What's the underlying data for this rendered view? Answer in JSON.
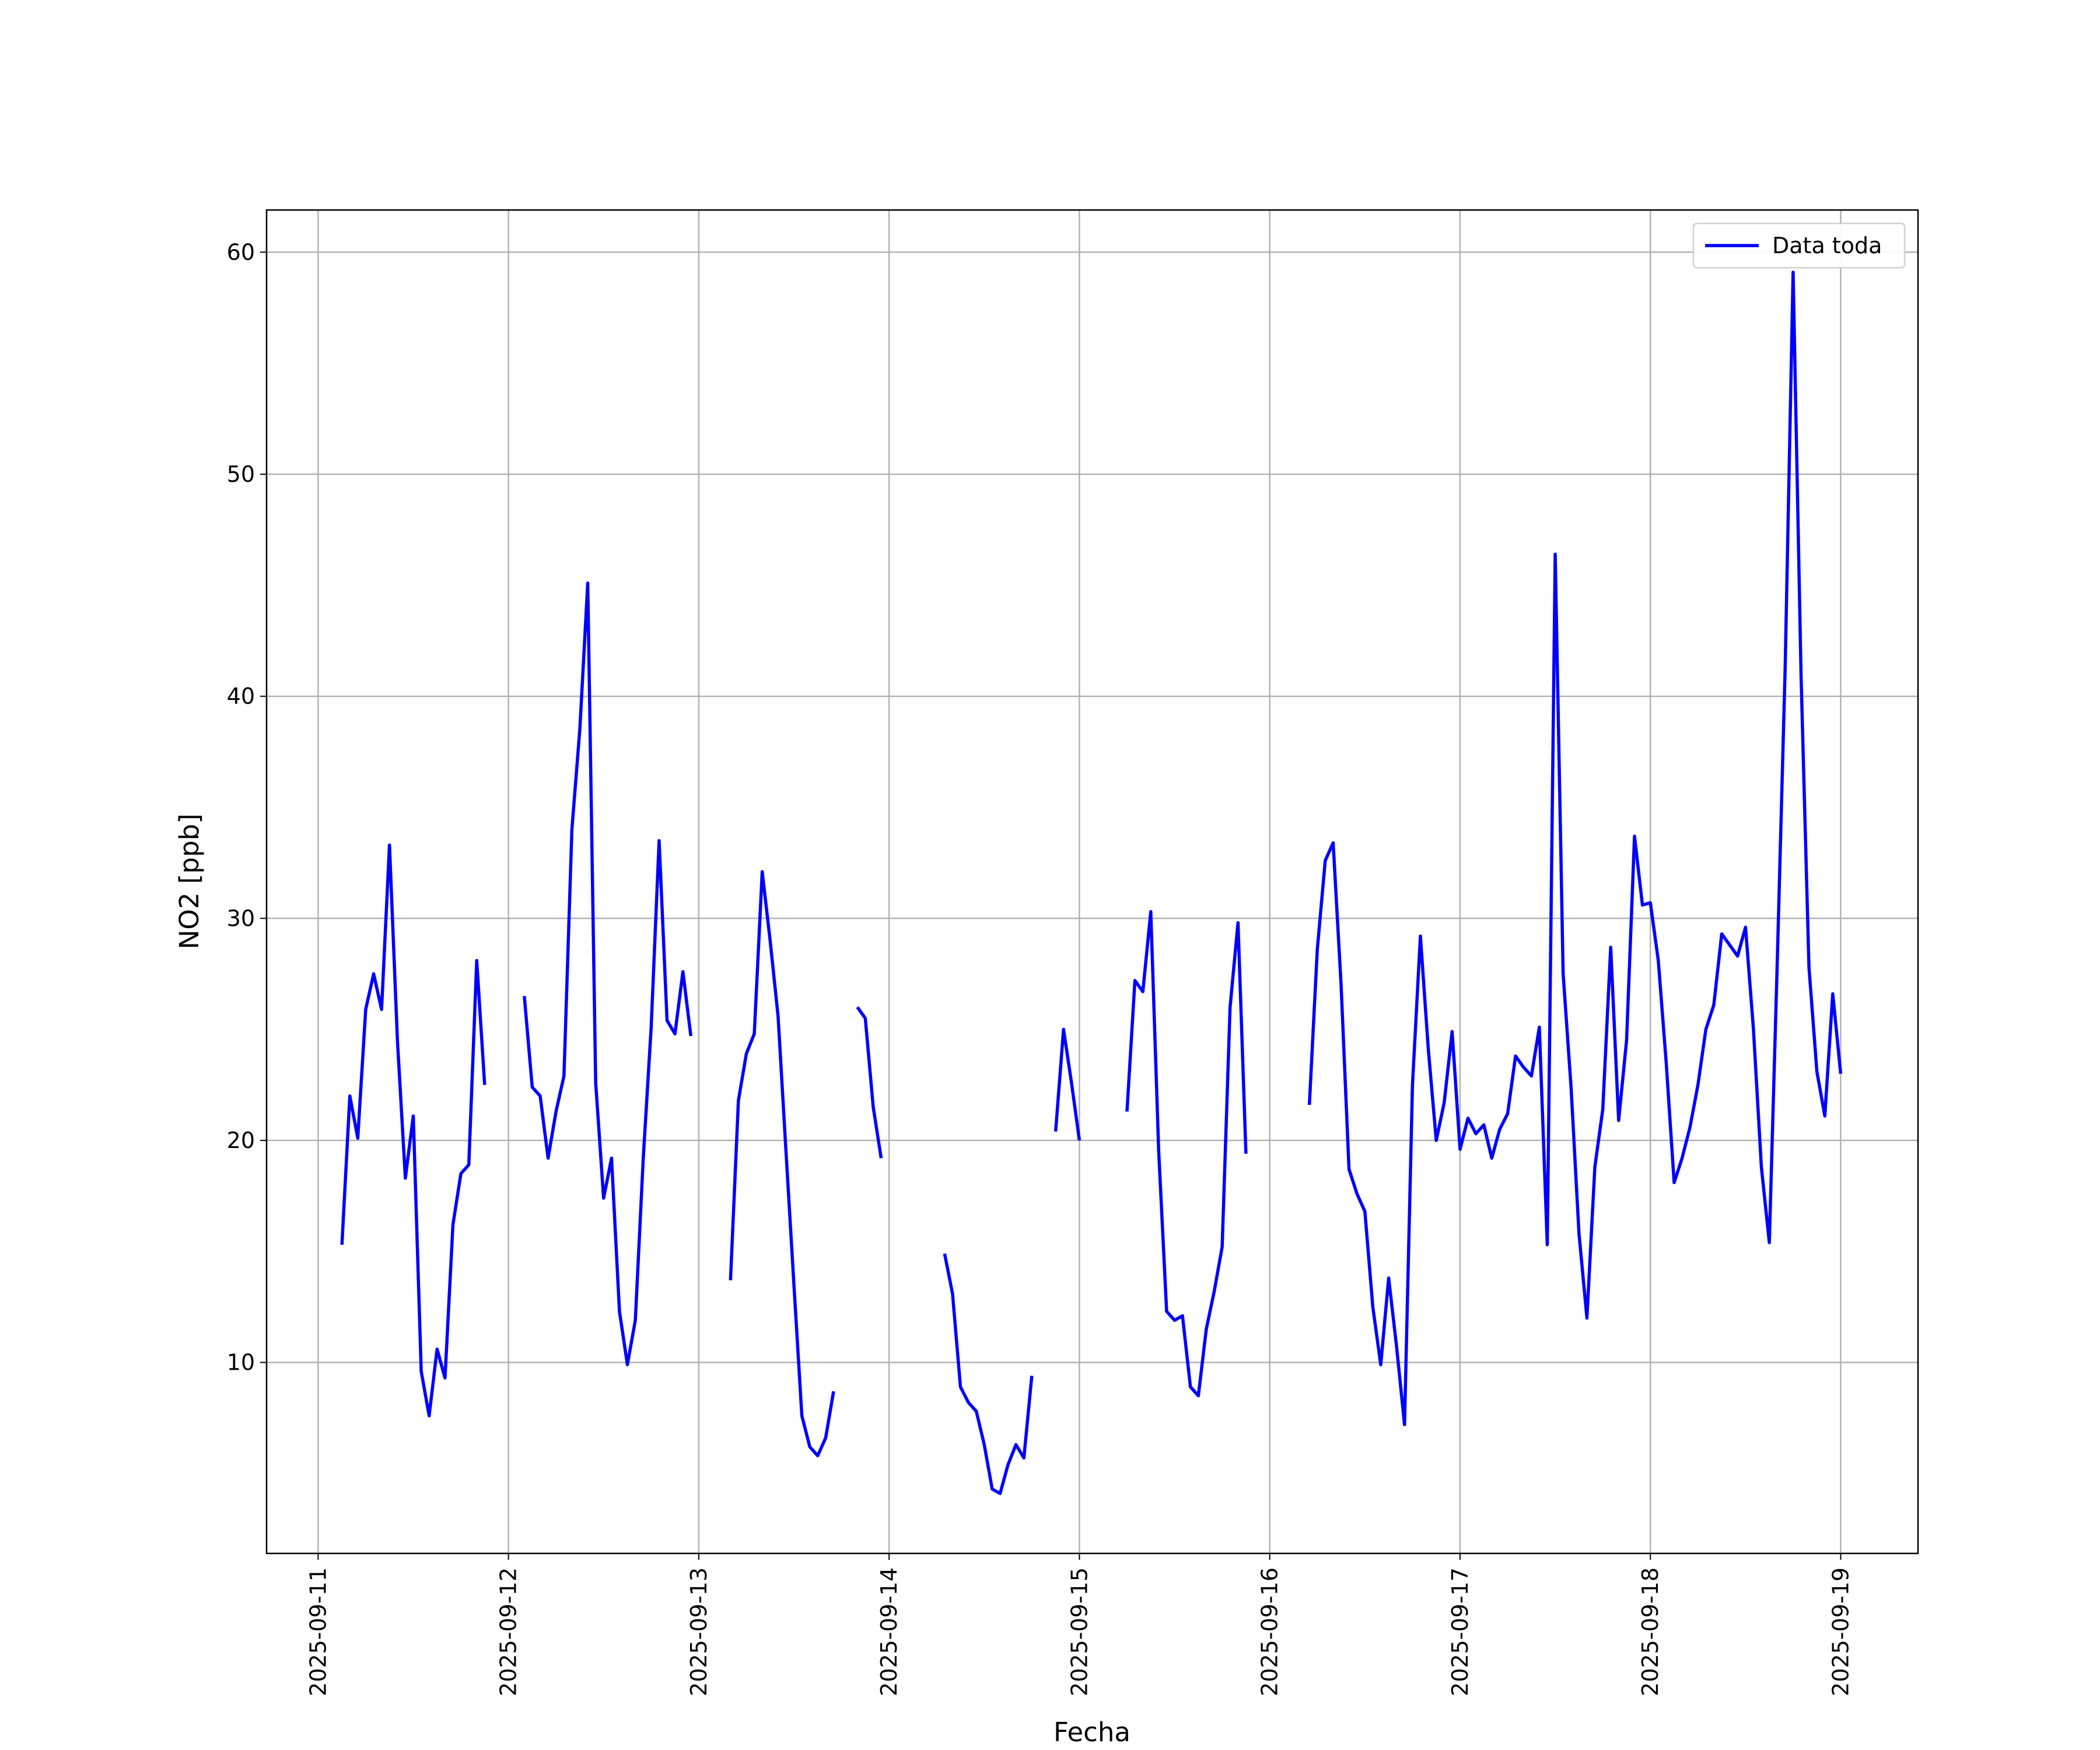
{
  "chart_data": {
    "type": "line",
    "xlabel": "Fecha",
    "ylabel": "NO2 [ppb]",
    "x": [
      "2025-09-11T03:00",
      "2025-09-11T04:00",
      "2025-09-11T05:00",
      "2025-09-11T06:00",
      "2025-09-11T07:00",
      "2025-09-11T08:00",
      "2025-09-11T09:00",
      "2025-09-11T10:00",
      "2025-09-11T11:00",
      "2025-09-11T12:00",
      "2025-09-11T13:00",
      "2025-09-11T14:00",
      "2025-09-11T15:00",
      "2025-09-11T16:00",
      "2025-09-11T17:00",
      "2025-09-11T18:00",
      "2025-09-11T19:00",
      "2025-09-11T20:00",
      "2025-09-11T21:00",
      "2025-09-11T22:00",
      "2025-09-11T23:00",
      "2025-09-12T00:00",
      "2025-09-12T01:00",
      "2025-09-12T02:00",
      "2025-09-12T03:00",
      "2025-09-12T04:00",
      "2025-09-12T05:00",
      "2025-09-12T06:00",
      "2025-09-12T07:00",
      "2025-09-12T08:00",
      "2025-09-12T09:00",
      "2025-09-12T10:00",
      "2025-09-12T11:00",
      "2025-09-12T12:00",
      "2025-09-12T13:00",
      "2025-09-12T14:00",
      "2025-09-12T15:00",
      "2025-09-12T16:00",
      "2025-09-12T17:00",
      "2025-09-12T18:00",
      "2025-09-12T19:00",
      "2025-09-12T20:00",
      "2025-09-12T21:00",
      "2025-09-12T22:00",
      "2025-09-12T23:00",
      "2025-09-13T00:00",
      "2025-09-13T01:00",
      "2025-09-13T02:00",
      "2025-09-13T03:00",
      "2025-09-13T04:00",
      "2025-09-13T05:00",
      "2025-09-13T06:00",
      "2025-09-13T07:00",
      "2025-09-13T08:00",
      "2025-09-13T09:00",
      "2025-09-13T10:00",
      "2025-09-13T11:00",
      "2025-09-13T12:00",
      "2025-09-13T13:00",
      "2025-09-13T14:00",
      "2025-09-13T15:00",
      "2025-09-13T16:00",
      "2025-09-13T17:00",
      "2025-09-13T18:00",
      "2025-09-13T19:00",
      "2025-09-13T20:00",
      "2025-09-13T21:00",
      "2025-09-13T22:00",
      "2025-09-13T23:00",
      "2025-09-14T00:00",
      "2025-09-14T01:00",
      "2025-09-14T02:00",
      "2025-09-14T03:00",
      "2025-09-14T04:00",
      "2025-09-14T05:00",
      "2025-09-14T06:00",
      "2025-09-14T07:00",
      "2025-09-14T08:00",
      "2025-09-14T09:00",
      "2025-09-14T10:00",
      "2025-09-14T11:00",
      "2025-09-14T12:00",
      "2025-09-14T13:00",
      "2025-09-14T14:00",
      "2025-09-14T15:00",
      "2025-09-14T16:00",
      "2025-09-14T17:00",
      "2025-09-14T18:00",
      "2025-09-14T19:00",
      "2025-09-14T20:00",
      "2025-09-14T21:00",
      "2025-09-14T22:00",
      "2025-09-14T23:00",
      "2025-09-15T00:00",
      "2025-09-15T01:00",
      "2025-09-15T02:00",
      "2025-09-15T03:00",
      "2025-09-15T04:00",
      "2025-09-15T05:00",
      "2025-09-15T06:00",
      "2025-09-15T07:00",
      "2025-09-15T08:00",
      "2025-09-15T09:00",
      "2025-09-15T10:00",
      "2025-09-15T11:00",
      "2025-09-15T12:00",
      "2025-09-15T13:00",
      "2025-09-15T14:00",
      "2025-09-15T15:00",
      "2025-09-15T16:00",
      "2025-09-15T17:00",
      "2025-09-15T18:00",
      "2025-09-15T19:00",
      "2025-09-15T20:00",
      "2025-09-15T21:00",
      "2025-09-15T22:00",
      "2025-09-15T23:00",
      "2025-09-16T00:00",
      "2025-09-16T01:00",
      "2025-09-16T02:00",
      "2025-09-16T03:00",
      "2025-09-16T04:00",
      "2025-09-16T05:00",
      "2025-09-16T06:00",
      "2025-09-16T07:00",
      "2025-09-16T08:00",
      "2025-09-16T09:00",
      "2025-09-16T10:00",
      "2025-09-16T11:00",
      "2025-09-16T12:00",
      "2025-09-16T13:00",
      "2025-09-16T14:00",
      "2025-09-16T15:00",
      "2025-09-16T16:00",
      "2025-09-16T17:00",
      "2025-09-16T18:00",
      "2025-09-16T19:00",
      "2025-09-16T20:00",
      "2025-09-16T21:00",
      "2025-09-16T22:00",
      "2025-09-16T23:00",
      "2025-09-17T00:00",
      "2025-09-17T01:00",
      "2025-09-17T02:00",
      "2025-09-17T03:00",
      "2025-09-17T04:00",
      "2025-09-17T05:00",
      "2025-09-17T06:00",
      "2025-09-17T07:00",
      "2025-09-17T08:00",
      "2025-09-17T09:00",
      "2025-09-17T10:00",
      "2025-09-17T11:00",
      "2025-09-17T12:00",
      "2025-09-17T13:00",
      "2025-09-17T14:00",
      "2025-09-17T15:00",
      "2025-09-17T16:00",
      "2025-09-17T17:00",
      "2025-09-17T18:00",
      "2025-09-17T19:00",
      "2025-09-17T20:00",
      "2025-09-17T21:00",
      "2025-09-17T22:00",
      "2025-09-17T23:00",
      "2025-09-18T00:00",
      "2025-09-18T01:00",
      "2025-09-18T02:00",
      "2025-09-18T03:00",
      "2025-09-18T04:00",
      "2025-09-18T05:00",
      "2025-09-18T06:00",
      "2025-09-18T07:00",
      "2025-09-18T08:00",
      "2025-09-18T09:00",
      "2025-09-18T10:00",
      "2025-09-18T11:00",
      "2025-09-18T12:00",
      "2025-09-18T13:00",
      "2025-09-18T14:00",
      "2025-09-18T15:00",
      "2025-09-18T16:00",
      "2025-09-18T17:00",
      "2025-09-18T18:00",
      "2025-09-18T19:00",
      "2025-09-18T20:00",
      "2025-09-18T21:00",
      "2025-09-18T22:00",
      "2025-09-18T23:00",
      "2025-09-19T00:00"
    ],
    "series": [
      {
        "name": "Data toda",
        "color": "#0000ff",
        "values": [
          15.3,
          22,
          20.1,
          25.9,
          27.5,
          25.9,
          33.3,
          24.5,
          18.3,
          21.1,
          9.6,
          7.6,
          10.6,
          9.3,
          16.2,
          18.5,
          18.9,
          28.1,
          22.5,
          null,
          null,
          null,
          null,
          26.5,
          22.4,
          22,
          19.2,
          21.3,
          22.9,
          34,
          38.5,
          45.1,
          22.6,
          17.4,
          19.2,
          12.3,
          9.9,
          11.9,
          19.2,
          25.1,
          33.5,
          25.4,
          24.8,
          27.6,
          24.7,
          null,
          null,
          null,
          null,
          13.7,
          21.8,
          23.9,
          24.8,
          32.1,
          29,
          25.6,
          19.5,
          13.5,
          7.6,
          6.2,
          5.8,
          6.6,
          8.7,
          null,
          null,
          26,
          25.5,
          21.5,
          19.2,
          null,
          null,
          null,
          null,
          null,
          null,
          null,
          14.9,
          13.1,
          8.9,
          8.2,
          7.8,
          6.3,
          4.3,
          4.1,
          5.4,
          6.3,
          5.7,
          9.4,
          null,
          null,
          20.4,
          25,
          22.6,
          20,
          null,
          null,
          null,
          null,
          null,
          21.3,
          27.2,
          26.7,
          30.3,
          19.5,
          12.3,
          11.9,
          12.1,
          8.9,
          8.5,
          11.5,
          13.2,
          15.2,
          26,
          29.8,
          19.4,
          null,
          null,
          null,
          null,
          null,
          null,
          null,
          21.6,
          28.6,
          32.6,
          33.4,
          27,
          18.7,
          17.6,
          16.8,
          12.5,
          9.9,
          13.8,
          10.7,
          7.2,
          22.5,
          29.2,
          24.1,
          20,
          21.7,
          24.9,
          19.6,
          21,
          20.3,
          20.7,
          19.2,
          20.5,
          21.2,
          23.8,
          23.3,
          22.9,
          25.1,
          15.3,
          46.4,
          27.5,
          22.4,
          15.8,
          12,
          18.8,
          21.4,
          28.7,
          20.9,
          24.5,
          33.7,
          30.6,
          30.7,
          28.1,
          23.5,
          18.1,
          19.2,
          20.6,
          22.5,
          25,
          26.1,
          29.3,
          28.8,
          28.3,
          29.6,
          25,
          18.8,
          15.4,
          28,
          41.3,
          59.1,
          41,
          27.8,
          23.1,
          21.1,
          26.6,
          23
        ]
      }
    ],
    "xlim": [
      "2025-09-10T17:30",
      "2025-09-19T09:45"
    ],
    "xticks": [
      "2025-09-11",
      "2025-09-12",
      "2025-09-13",
      "2025-09-14",
      "2025-09-15",
      "2025-09-16",
      "2025-09-17",
      "2025-09-18",
      "2025-09-19"
    ],
    "ylim": [
      1.4,
      61.9
    ],
    "yticks": [
      10,
      20,
      30,
      40,
      50,
      60
    ],
    "grid": true,
    "legend": "upper right"
  }
}
